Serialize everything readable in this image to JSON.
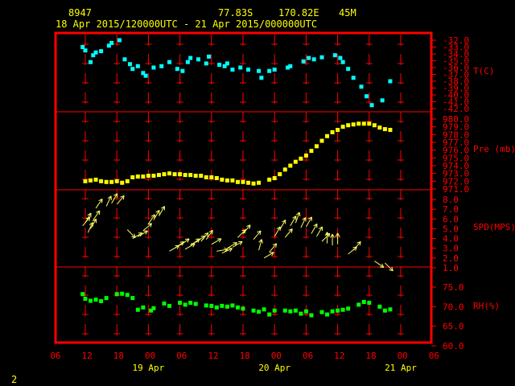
{
  "header": {
    "station": "8947",
    "lat": "77.83S",
    "lon": "170.82E",
    "elev": "45M",
    "range": "18 Apr 2015/120000UTC - 21 Apr 2015/000000UTC"
  },
  "page_number": "2",
  "colors": {
    "background": "#000000",
    "frame": "#ff0000",
    "grid": "#ff0000",
    "header_text": "#ffff00",
    "temperature": "#00ffff",
    "pressure": "#ffff00",
    "wind": "#ffff66",
    "humidity": "#00ff00"
  },
  "chart_data": [
    {
      "type": "scatter",
      "label": "T(C)",
      "ylim": [
        -42,
        -32
      ],
      "yticks": [
        "-32.0",
        "-33.0",
        "-34.0",
        "-35.0",
        "-36.0",
        "-37.0",
        "-38.0",
        "-39.0",
        "-40.0",
        "-41.0",
        "-42.0"
      ],
      "points": [
        [
          11.5,
          -33.0
        ],
        [
          12.0,
          -33.5
        ],
        [
          13.0,
          -35.2
        ],
        [
          13.5,
          -34.2
        ],
        [
          14.0,
          -33.8
        ],
        [
          15.0,
          -33.6
        ],
        [
          16.5,
          -32.8
        ],
        [
          17.0,
          -32.4
        ],
        [
          18.5,
          -32.0
        ],
        [
          19.5,
          -34.8
        ],
        [
          20.5,
          -35.5
        ],
        [
          21.0,
          -36.2
        ],
        [
          22.0,
          -35.8
        ],
        [
          23.0,
          -36.8
        ],
        [
          23.5,
          -37.2
        ],
        [
          25.0,
          -36.0
        ],
        [
          26.5,
          -35.8
        ],
        [
          28.0,
          -35.2
        ],
        [
          29.5,
          -36.2
        ],
        [
          30.5,
          -36.5
        ],
        [
          31.5,
          -35.2
        ],
        [
          32.0,
          -34.6
        ],
        [
          33.5,
          -34.8
        ],
        [
          35.0,
          -35.4
        ],
        [
          35.5,
          -34.4
        ],
        [
          37.5,
          -35.6
        ],
        [
          38.5,
          -35.8
        ],
        [
          39.0,
          -35.4
        ],
        [
          40.0,
          -36.3
        ],
        [
          41.5,
          -36.0
        ],
        [
          43.0,
          -36.3
        ],
        [
          45.0,
          -36.5
        ],
        [
          45.5,
          -37.5
        ],
        [
          47.0,
          -36.5
        ],
        [
          48.0,
          -36.3
        ],
        [
          50.5,
          -36.0
        ],
        [
          51.0,
          -35.8
        ],
        [
          53.5,
          -35.1
        ],
        [
          54.5,
          -34.6
        ],
        [
          55.5,
          -34.8
        ],
        [
          57.0,
          -34.5
        ],
        [
          59.5,
          -34.2
        ],
        [
          60.5,
          -34.6
        ],
        [
          61.0,
          -35.2
        ],
        [
          62.0,
          -36.2
        ],
        [
          63.0,
          -37.5
        ],
        [
          64.5,
          -38.8
        ],
        [
          65.5,
          -40.2
        ],
        [
          66.5,
          -41.5
        ],
        [
          68.5,
          -40.8
        ],
        [
          70.0,
          -38.0
        ]
      ]
    },
    {
      "type": "scatter",
      "label": "Pre (mb)",
      "ylim": [
        971,
        980
      ],
      "yticks": [
        "980.0",
        "979.0",
        "978.0",
        "977.0",
        "976.0",
        "975.0",
        "974.0",
        "973.0",
        "972.0",
        "971.0"
      ],
      "points": [
        [
          12,
          972.0
        ],
        [
          13,
          972.1
        ],
        [
          14,
          972.2
        ],
        [
          15,
          972.0
        ],
        [
          16,
          971.9
        ],
        [
          17,
          971.9
        ],
        [
          18,
          972.0
        ],
        [
          19,
          971.8
        ],
        [
          20,
          972.0
        ],
        [
          21,
          972.5
        ],
        [
          22,
          972.6
        ],
        [
          23,
          972.6
        ],
        [
          24,
          972.7
        ],
        [
          25,
          972.7
        ],
        [
          26,
          972.8
        ],
        [
          27,
          972.9
        ],
        [
          28,
          973.0
        ],
        [
          29,
          972.9
        ],
        [
          30,
          972.9
        ],
        [
          31,
          972.8
        ],
        [
          32,
          972.8
        ],
        [
          33,
          972.7
        ],
        [
          34,
          972.7
        ],
        [
          35,
          972.5
        ],
        [
          36,
          972.5
        ],
        [
          37,
          972.4
        ],
        [
          38,
          972.2
        ],
        [
          39,
          972.1
        ],
        [
          40,
          972.1
        ],
        [
          41,
          971.9
        ],
        [
          42,
          971.9
        ],
        [
          43,
          971.8
        ],
        [
          44,
          971.7
        ],
        [
          45,
          971.8
        ],
        [
          47,
          972.2
        ],
        [
          48,
          972.4
        ],
        [
          49,
          972.9
        ],
        [
          50,
          973.5
        ],
        [
          51,
          974.0
        ],
        [
          52,
          974.5
        ],
        [
          53,
          974.9
        ],
        [
          54,
          975.3
        ],
        [
          55,
          975.9
        ],
        [
          56,
          976.5
        ],
        [
          57,
          977.2
        ],
        [
          58,
          977.8
        ],
        [
          59,
          978.3
        ],
        [
          60,
          978.6
        ],
        [
          61,
          979.0
        ],
        [
          62,
          979.2
        ],
        [
          63,
          979.3
        ],
        [
          64,
          979.4
        ],
        [
          65,
          979.4
        ],
        [
          66,
          979.4
        ],
        [
          67,
          979.2
        ],
        [
          68,
          978.9
        ],
        [
          69,
          978.7
        ],
        [
          70,
          978.6
        ]
      ]
    },
    {
      "type": "scatter",
      "label": "SPD(MPS)",
      "ylim": [
        1,
        8
      ],
      "yticks": [
        "8.0",
        "7.0",
        "6.0",
        "5.0",
        "4.0",
        "3.0",
        "2.0",
        "1.0"
      ],
      "arrows": [
        [
          11.5,
          5.3,
          40
        ],
        [
          12.0,
          5.6,
          30
        ],
        [
          12.5,
          4.6,
          25
        ],
        [
          13.0,
          5.0,
          30
        ],
        [
          13.5,
          5.9,
          35
        ],
        [
          14.0,
          7.1,
          35
        ],
        [
          16.0,
          7.3,
          25
        ],
        [
          17.0,
          7.6,
          30
        ],
        [
          18.0,
          7.5,
          40
        ],
        [
          20.0,
          4.9,
          135
        ],
        [
          21.0,
          4.0,
          60
        ],
        [
          22.0,
          4.2,
          60
        ],
        [
          23.0,
          4.8,
          50
        ],
        [
          24.0,
          5.5,
          35
        ],
        [
          25.0,
          5.9,
          30
        ],
        [
          26.0,
          6.3,
          30
        ],
        [
          28.0,
          2.7,
          60
        ],
        [
          29.0,
          3.0,
          55
        ],
        [
          30.0,
          3.3,
          55
        ],
        [
          31.0,
          2.9,
          60
        ],
        [
          32.0,
          3.3,
          55
        ],
        [
          33.0,
          3.6,
          55
        ],
        [
          34.0,
          3.7,
          40
        ],
        [
          35.0,
          3.9,
          35
        ],
        [
          36.0,
          3.4,
          60
        ],
        [
          37.0,
          2.7,
          80
        ],
        [
          38.0,
          2.5,
          65
        ],
        [
          39.0,
          3.0,
          60
        ],
        [
          40.0,
          3.1,
          60
        ],
        [
          41.0,
          4.1,
          45
        ],
        [
          42.0,
          4.5,
          40
        ],
        [
          44.0,
          3.9,
          40
        ],
        [
          45.0,
          2.8,
          15
        ],
        [
          46.0,
          2.0,
          60
        ],
        [
          47.0,
          2.6,
          40
        ],
        [
          48.0,
          4.2,
          30
        ],
        [
          49.0,
          4.9,
          30
        ],
        [
          50.0,
          4.1,
          40
        ],
        [
          51.0,
          5.3,
          30
        ],
        [
          52.0,
          5.6,
          20
        ],
        [
          53.0,
          5.1,
          25
        ],
        [
          54.0,
          5.2,
          30
        ],
        [
          55.0,
          4.5,
          30
        ],
        [
          56.0,
          4.2,
          30
        ],
        [
          57.0,
          3.7,
          45
        ],
        [
          58.0,
          3.5,
          0
        ],
        [
          59.0,
          3.3,
          0
        ],
        [
          60.0,
          3.4,
          0
        ],
        [
          62.0,
          2.4,
          50
        ],
        [
          63.0,
          2.8,
          40
        ],
        [
          67.0,
          1.7,
          125
        ],
        [
          69.0,
          1.5,
          135
        ]
      ]
    },
    {
      "type": "scatter",
      "label": "RH(%)",
      "ylim": [
        60,
        77
      ],
      "yticks": [
        "75.0",
        "70.0",
        "65.0",
        "60.0"
      ],
      "points": [
        [
          11.5,
          73.2
        ],
        [
          12.0,
          72.0
        ],
        [
          13.0,
          71.5
        ],
        [
          14.0,
          71.8
        ],
        [
          15.0,
          71.4
        ],
        [
          16.0,
          72.2
        ],
        [
          18.0,
          73.2
        ],
        [
          19.0,
          73.3
        ],
        [
          20.0,
          73.0
        ],
        [
          21.0,
          72.2
        ],
        [
          22.0,
          69.2
        ],
        [
          23.0,
          69.8
        ],
        [
          24.5,
          69.0
        ],
        [
          25.0,
          69.6
        ],
        [
          27.0,
          70.8
        ],
        [
          28.0,
          70.2
        ],
        [
          30.0,
          71.0
        ],
        [
          31.0,
          70.5
        ],
        [
          32.0,
          71.0
        ],
        [
          33.0,
          70.7
        ],
        [
          35.0,
          70.3
        ],
        [
          36.0,
          70.2
        ],
        [
          37.0,
          69.8
        ],
        [
          38.0,
          70.2
        ],
        [
          39.0,
          70.0
        ],
        [
          40.0,
          70.3
        ],
        [
          41.0,
          69.8
        ],
        [
          42.0,
          69.5
        ],
        [
          44.0,
          69.0
        ],
        [
          45.0,
          68.7
        ],
        [
          46.0,
          69.3
        ],
        [
          47.0,
          68.0
        ],
        [
          48.0,
          69.0
        ],
        [
          50.0,
          69.0
        ],
        [
          51.0,
          68.8
        ],
        [
          52.0,
          69.0
        ],
        [
          53.0,
          68.2
        ],
        [
          54.0,
          68.8
        ],
        [
          55.0,
          67.8
        ],
        [
          57.0,
          68.6
        ],
        [
          58.0,
          68.0
        ],
        [
          59.0,
          68.8
        ],
        [
          60.0,
          69.0
        ],
        [
          61.0,
          69.2
        ],
        [
          62.0,
          69.5
        ],
        [
          64.0,
          70.5
        ],
        [
          65.0,
          71.2
        ],
        [
          66.0,
          71.0
        ],
        [
          68.0,
          70.0
        ],
        [
          69.0,
          69.0
        ],
        [
          70.0,
          69.3
        ]
      ]
    }
  ],
  "x_axis": {
    "hour_labels": [
      "06",
      "12",
      "18",
      "00",
      "06",
      "12",
      "18",
      "00",
      "06",
      "12",
      "18",
      "00",
      "06"
    ],
    "date_labels": [
      {
        "text": "19 Apr",
        "hour": 24
      },
      {
        "text": "20 Apr",
        "hour": 48
      },
      {
        "text": "21 Apr",
        "hour": 72
      }
    ]
  }
}
